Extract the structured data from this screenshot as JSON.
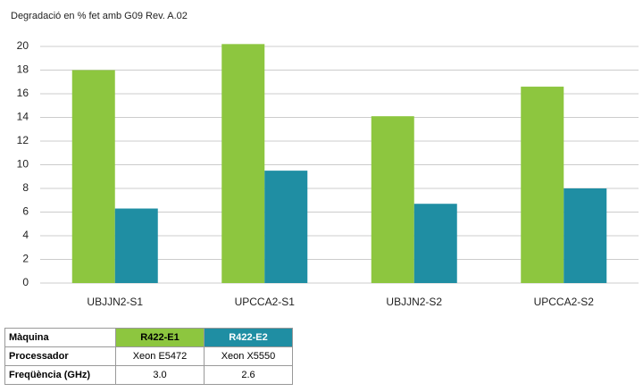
{
  "chart_data": {
    "type": "bar",
    "title": "Degradació en % fet amb G09 Rev. A.02",
    "categories": [
      "UBJJN2-S1",
      "UPCCA2-S1",
      "UBJJN2-S2",
      "UPCCA2-S2"
    ],
    "series": [
      {
        "name": "R422-E1",
        "color": "#8dc63f",
        "values": [
          18.0,
          20.2,
          14.1,
          16.6
        ]
      },
      {
        "name": "R422-E2",
        "color": "#1f8ea3",
        "values": [
          6.3,
          9.5,
          6.7,
          8.0
        ]
      }
    ],
    "ylim": [
      0,
      20
    ],
    "yticks": [
      0,
      2,
      4,
      6,
      8,
      10,
      12,
      14,
      16,
      18,
      20
    ],
    "grid": true
  },
  "table": {
    "header": "Màquina",
    "rows": [
      [
        "Processador",
        "Xeon E5472",
        "Xeon X5550"
      ],
      [
        "Freqüència (GHz)",
        "3.0",
        "2.6"
      ]
    ]
  }
}
